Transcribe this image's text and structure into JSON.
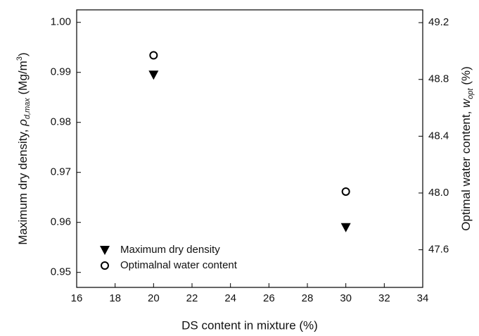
{
  "chart_data": {
    "type": "scatter",
    "xlabel": "DS content in mixture (%)",
    "ylabel": [
      "Maximum dry density, ",
      "ρ",
      "d,max",
      " (Mg/m",
      "3",
      ")"
    ],
    "y2label": [
      "Optimal water content, ",
      "w",
      "opt",
      " (%)"
    ],
    "xlim": [
      16,
      34
    ],
    "xticks": [
      16,
      18,
      20,
      22,
      24,
      26,
      28,
      30,
      32,
      34
    ],
    "ylim": [
      0.947,
      1.0025
    ],
    "yticks": [
      0.95,
      0.96,
      0.97,
      0.98,
      0.99,
      {
        "value": 1,
        "label": "1.00"
      }
    ],
    "y2lim": [
      47.335,
      49.29
    ],
    "y2ticks": [
      47.6,
      {
        "value": 48,
        "label": "48.0"
      },
      48.4,
      48.8,
      49.2
    ],
    "legend": "lower left",
    "series": [
      {
        "name": "Maximum dry density",
        "marker": "triangle-down",
        "color": "#000000",
        "x": [
          20,
          30
        ],
        "values": [
          0.9895,
          0.959
        ]
      },
      {
        "name": "Optimalnal water content",
        "marker": "circle",
        "color": "#000000",
        "axis": "y2",
        "x": [
          20,
          30
        ],
        "values": [
          48.97,
          48.01
        ]
      }
    ]
  }
}
